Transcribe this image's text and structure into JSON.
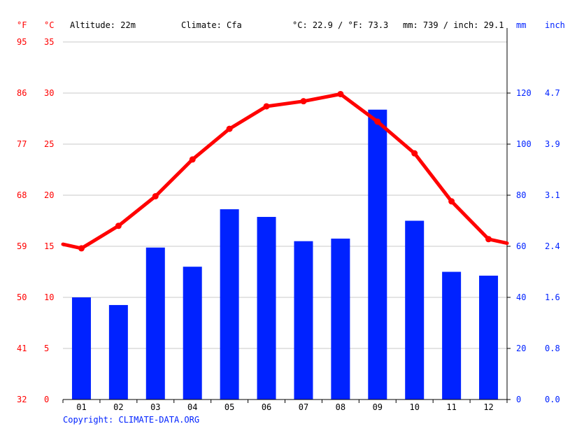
{
  "header": {
    "unit_f": "°F",
    "unit_c": "°C",
    "altitude": "Altitude: 22m",
    "climate": "Climate: Cfa",
    "temp_summary": "°C: 22.9 / °F: 73.3",
    "precip_summary": "mm: 739 / inch: 29.1",
    "unit_mm": "mm",
    "unit_inch": "inch"
  },
  "footer": {
    "copyright": "Copyright: CLIMATE-DATA.ORG"
  },
  "colors": {
    "temperature": "#ff0000",
    "precipitation": "#0022ff",
    "grid": "#c8c8c8",
    "axis": "#000000"
  },
  "chart_data": {
    "type": "bar",
    "categories": [
      "01",
      "02",
      "03",
      "04",
      "05",
      "06",
      "07",
      "08",
      "09",
      "10",
      "11",
      "12"
    ],
    "series": [
      {
        "type": "bar",
        "axis": "right",
        "values": [
          40,
          37,
          59.5,
          52,
          74.5,
          71.5,
          62,
          63,
          113.5,
          70,
          50,
          48.5
        ]
      },
      {
        "type": "line",
        "axis": "left",
        "values": [
          14.8,
          17,
          19.9,
          23.5,
          26.5,
          28.7,
          29.2,
          29.9,
          27.2,
          24.1,
          19.4,
          15.7
        ],
        "edge_values": [
          15.2,
          15.3
        ]
      }
    ],
    "y_left_celsius_ticks": [
      "0",
      "5",
      "10",
      "15",
      "20",
      "25",
      "30",
      "35"
    ],
    "y_left_fahrenheit_ticks": [
      "32",
      "41",
      "50",
      "59",
      "68",
      "77",
      "86",
      "95"
    ],
    "y_right_mm_ticks": [
      "0",
      "20",
      "40",
      "60",
      "80",
      "100",
      "120"
    ],
    "y_right_inch_ticks": [
      "0.0",
      "0.8",
      "1.6",
      "2.4",
      "3.1",
      "3.9",
      "4.7"
    ],
    "ylim_celsius": [
      0,
      35
    ],
    "ylim_mm": [
      0,
      140
    ],
    "grid": true
  }
}
